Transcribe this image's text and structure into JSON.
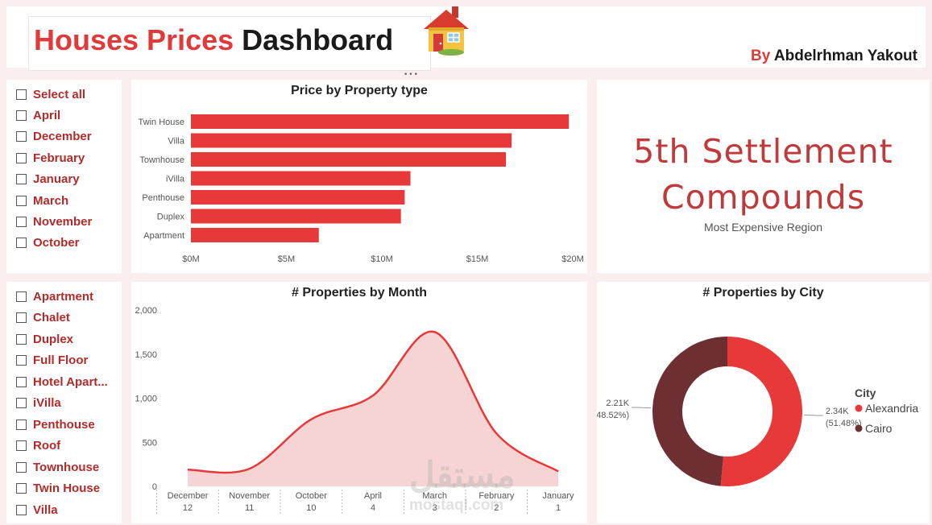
{
  "header": {
    "title_red": "Houses Prices",
    "title_black": "Dashboard",
    "house_icon": "house-emoji-icon",
    "author_prefix": "By",
    "author_name": "Abdelrhman Yakout",
    "more_options": "•••"
  },
  "month_slicer": {
    "items": [
      "Select all",
      "April",
      "December",
      "February",
      "January",
      "March",
      "November",
      "October"
    ]
  },
  "type_slicer": {
    "items": [
      "Apartment",
      "Chalet",
      "Duplex",
      "Full Floor",
      "Hotel Apart...",
      "iVilla",
      "Penthouse",
      "Roof",
      "Townhouse",
      "Twin House",
      "Villa"
    ]
  },
  "kpi": {
    "line1": "5th Settlement",
    "line2": "Compounds",
    "subtitle": "Most Expensive Region"
  },
  "colors": {
    "accent": "#e8393a",
    "dark": "#6d2f31",
    "area": "#f7d4d4",
    "kpi": "#c0393b"
  },
  "watermark": {
    "arabic": "مستقل",
    "latin": "mostaql.com"
  },
  "chart_data": [
    {
      "type": "bar",
      "orientation": "horizontal",
      "title": "Price by Property type",
      "categories": [
        "Twin House",
        "Villa",
        "Townhouse",
        "iVilla",
        "Penthouse",
        "Duplex",
        "Apartment"
      ],
      "values": [
        19800000,
        16800000,
        16500000,
        11500000,
        11200000,
        11000000,
        6700000
      ],
      "xlim": [
        0,
        20000000
      ],
      "ticks": [
        0,
        5000000,
        10000000,
        15000000,
        20000000
      ],
      "tick_labels": [
        "$0M",
        "$5M",
        "$10M",
        "$15M",
        "$20M"
      ],
      "grid": false
    },
    {
      "type": "area",
      "title": "# Properties by Month",
      "categories": [
        "December",
        "November",
        "October",
        "April",
        "March",
        "February",
        "January"
      ],
      "category_values": [
        "12",
        "11",
        "10",
        "4",
        "3",
        "2",
        "1"
      ],
      "values": [
        190,
        200,
        760,
        1030,
        1750,
        600,
        170
      ],
      "ylim": [
        0,
        2000
      ],
      "y_ticks": [
        0,
        500,
        1000,
        1500,
        2000
      ],
      "y_tick_labels": [
        "0",
        "500",
        "1,000",
        "1,500",
        "2,000"
      ]
    },
    {
      "type": "pie",
      "variant": "donut",
      "title": "# Properties by City",
      "legend_title": "City",
      "legend_position": "right",
      "slices": [
        {
          "name": "Alexandria",
          "value": 2340,
          "label": "2.34K",
          "pct": "(51.48%)",
          "color": "#e8393a"
        },
        {
          "name": "Cairo",
          "value": 2210,
          "label": "2.21K",
          "pct": "(48.52%)",
          "color": "#6d2f31"
        }
      ]
    }
  ]
}
